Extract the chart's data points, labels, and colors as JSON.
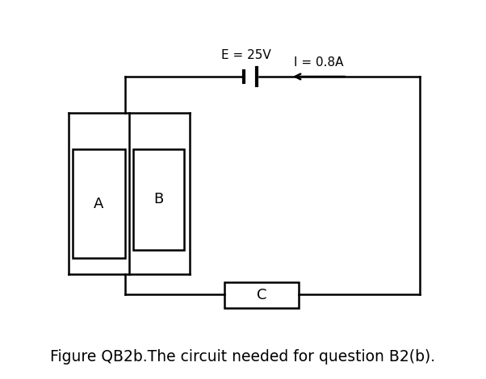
{
  "bg_color": "#ffffff",
  "line_color": "#000000",
  "line_width": 1.8,
  "fig_caption": "Figure QB2b.The circuit needed for question B2(b).",
  "caption_fontsize": 13.5,
  "battery_label": "E = 25V",
  "current_label": "I = 0.8A",
  "label_A": "A",
  "label_B": "B",
  "label_C": "C",
  "component_fontsize": 13
}
